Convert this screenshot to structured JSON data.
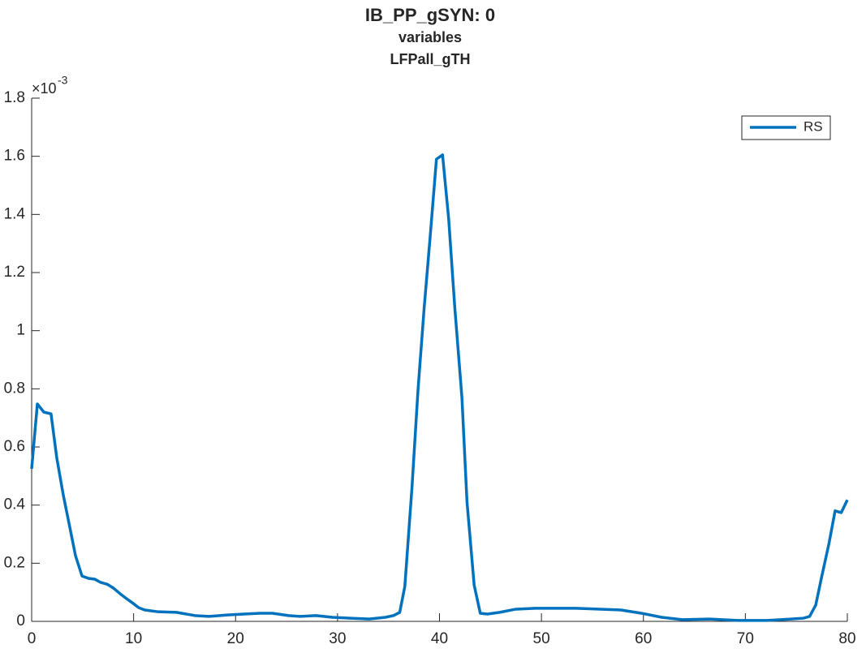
{
  "chart_data": {
    "type": "line",
    "title": "IB_PP_gSYN: 0",
    "subtitle": [
      "variables",
      "LFPall_gTH"
    ],
    "y_exponent_base": "×10",
    "y_exponent_power": "-3",
    "x": [
      0,
      0.56,
      1.19,
      1.9,
      2.47,
      3.1,
      3.74,
      4.3,
      4.94,
      5.57,
      6.2,
      6.77,
      7.4,
      8.04,
      8.68,
      9.31,
      9.87,
      10.5,
      11.1,
      12.4,
      14.2,
      16,
      17.4,
      19.2,
      20.8,
      22.4,
      23.6,
      25.2,
      26.3,
      27.9,
      29.5,
      31.1,
      33.1,
      34.7,
      35.5,
      36.1,
      36.6,
      37.3,
      37.9,
      38.5,
      39.1,
      39.7,
      40.3,
      40.9,
      41.5,
      42.2,
      42.7,
      43.4,
      44.0,
      44.7,
      45.9,
      47.5,
      49.4,
      51,
      53.4,
      55.8,
      57.8,
      59.8,
      61.8,
      63.8,
      66.5,
      69.3,
      72.1,
      74.5,
      75.7,
      76.3,
      76.9,
      77.5,
      78.2,
      78.8,
      79.4,
      80
    ],
    "series": [
      {
        "name": "RS",
        "color": "#0072bd",
        "values": [
          0.525,
          0.748,
          0.72,
          0.714,
          0.561,
          0.435,
          0.324,
          0.226,
          0.156,
          0.148,
          0.145,
          0.134,
          0.128,
          0.114,
          0.095,
          0.078,
          0.064,
          0.047,
          0.039,
          0.033,
          0.031,
          0.02,
          0.017,
          0.022,
          0.025,
          0.028,
          0.028,
          0.02,
          0.017,
          0.02,
          0.014,
          0.011,
          0.008,
          0.014,
          0.02,
          0.031,
          0.12,
          0.46,
          0.8,
          1.08,
          1.33,
          1.59,
          1.605,
          1.385,
          1.08,
          0.77,
          0.41,
          0.125,
          0.028,
          0.025,
          0.031,
          0.042,
          0.045,
          0.045,
          0.045,
          0.042,
          0.039,
          0.028,
          0.014,
          0.006,
          0.008,
          0.003,
          0.003,
          0.008,
          0.011,
          0.017,
          0.056,
          0.156,
          0.268,
          0.38,
          0.374,
          0.418
        ]
      }
    ],
    "xlim": [
      0,
      80
    ],
    "xticks": [
      0,
      10,
      20,
      30,
      40,
      50,
      60,
      70,
      80
    ],
    "ylim": [
      0,
      1.8
    ],
    "yticks": [
      0,
      0.2,
      0.4,
      0.6,
      0.8,
      1,
      1.2,
      1.4,
      1.6,
      1.8
    ],
    "legend": "upper right",
    "grid": false
  }
}
